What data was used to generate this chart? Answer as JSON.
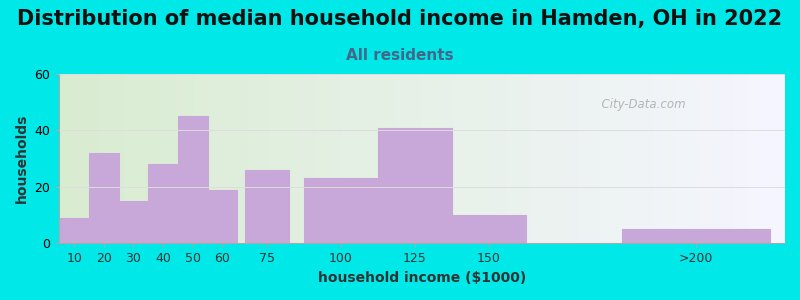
{
  "title": "Distribution of median household income in Hamden, OH in 2022",
  "subtitle": "All residents",
  "xlabel": "household income ($1000)",
  "ylabel": "households",
  "bar_labels": [
    "10",
    "20",
    "30",
    "40",
    "50",
    "60",
    "75",
    "100",
    "125",
    "150",
    ">200"
  ],
  "bar_centers": [
    10,
    20,
    30,
    40,
    50,
    60,
    75,
    100,
    125,
    150,
    220
  ],
  "bar_widths": [
    10,
    10,
    10,
    10,
    10,
    10,
    15,
    25,
    25,
    25,
    50
  ],
  "bar_values": [
    9,
    32,
    15,
    28,
    45,
    19,
    26,
    23,
    41,
    10,
    5
  ],
  "bar_color": "#c8a8d8",
  "bar_edgecolor": "#b898c8",
  "ylim": [
    0,
    60
  ],
  "yticks": [
    0,
    20,
    40,
    60
  ],
  "xlim": [
    5,
    250
  ],
  "background_color": "#00e8e8",
  "plot_bg_left": "#d8ecd0",
  "plot_bg_right": "#f5f5ff",
  "title_fontsize": 15,
  "subtitle_fontsize": 11,
  "axis_label_fontsize": 10,
  "tick_fontsize": 9,
  "watermark_text": "  City-Data.com",
  "title_color": "#111111",
  "subtitle_color": "#446688",
  "grid_color": "#dddddd"
}
